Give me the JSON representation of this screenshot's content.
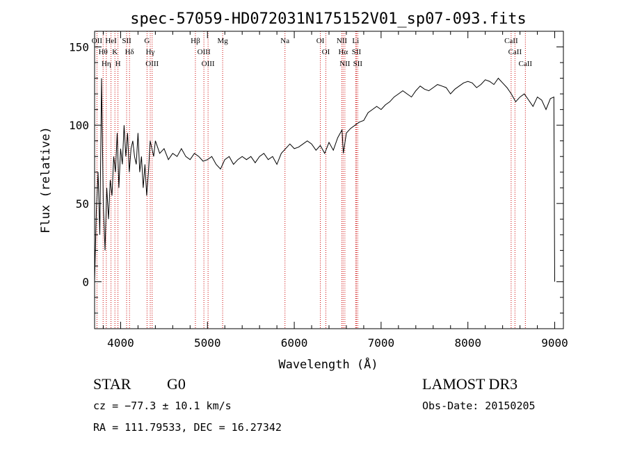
{
  "chart_data": {
    "type": "line",
    "title": "spec-57059-HD072031N175152V01_sp07-093.fits",
    "xlabel": "Wavelength (Å)",
    "ylabel": "Flux (relative)",
    "xlim": [
      3700,
      9100
    ],
    "ylim": [
      -30,
      160
    ],
    "xticks": [
      4000,
      5000,
      6000,
      7000,
      8000,
      9000
    ],
    "xtick_labels": [
      "4000",
      "5000",
      "6000",
      "7000",
      "8000",
      "9000"
    ],
    "yticks": [
      0,
      50,
      100,
      150
    ],
    "ytick_labels": [
      "0",
      "50",
      "100",
      "150"
    ],
    "grid": false,
    "legend": "none",
    "line_color": "#000000",
    "marker_color": "#cc0000",
    "series": [
      {
        "x": [
          3700,
          3720,
          3740,
          3760,
          3780,
          3800,
          3820,
          3840,
          3860,
          3880,
          3900,
          3920,
          3940,
          3960,
          3980,
          4000,
          4020,
          4040,
          4060,
          4080,
          4100,
          4120,
          4140,
          4160,
          4180,
          4200,
          4220,
          4240,
          4260,
          4280,
          4300,
          4320,
          4340,
          4360,
          4380,
          4400,
          4450,
          4500,
          4550,
          4600,
          4650,
          4700,
          4750,
          4800,
          4850,
          4900,
          4950,
          5000,
          5050,
          5100,
          5150,
          5200,
          5250,
          5300,
          5350,
          5400,
          5450,
          5500,
          5550,
          5600,
          5650,
          5700,
          5750,
          5800,
          5850,
          5900,
          5950,
          6000,
          6050,
          6100,
          6150,
          6200,
          6250,
          6300,
          6350,
          6400,
          6450,
          6500,
          6550,
          6565,
          6600,
          6650,
          6700,
          6750,
          6800,
          6850,
          6900,
          6950,
          7000,
          7050,
          7100,
          7150,
          7200,
          7250,
          7300,
          7350,
          7400,
          7450,
          7500,
          7550,
          7600,
          7650,
          7700,
          7750,
          7800,
          7850,
          7900,
          7950,
          8000,
          8050,
          8100,
          8150,
          8200,
          8250,
          8300,
          8350,
          8400,
          8450,
          8500,
          8550,
          8600,
          8650,
          8700,
          8750,
          8800,
          8850,
          8900,
          8950,
          8990,
          9000
        ],
        "y": [
          0,
          45,
          70,
          30,
          130,
          50,
          20,
          60,
          40,
          65,
          55,
          80,
          70,
          95,
          60,
          85,
          75,
          100,
          80,
          95,
          70,
          85,
          90,
          80,
          75,
          95,
          70,
          80,
          60,
          75,
          55,
          70,
          90,
          85,
          80,
          90,
          82,
          85,
          78,
          82,
          80,
          85,
          80,
          78,
          82,
          80,
          77,
          78,
          80,
          75,
          72,
          78,
          80,
          75,
          78,
          80,
          78,
          80,
          76,
          80,
          82,
          78,
          80,
          75,
          82,
          85,
          88,
          85,
          86,
          88,
          90,
          88,
          84,
          87,
          82,
          89,
          84,
          92,
          97,
          82,
          95,
          98,
          100,
          102,
          103,
          108,
          110,
          112,
          110,
          113,
          115,
          118,
          120,
          122,
          120,
          118,
          122,
          125,
          123,
          122,
          124,
          126,
          125,
          124,
          120,
          123,
          125,
          127,
          128,
          127,
          124,
          126,
          129,
          128,
          126,
          130,
          127,
          124,
          120,
          115,
          118,
          120,
          116,
          112,
          118,
          116,
          110,
          117,
          118,
          0
        ]
      }
    ],
    "line_markers": [
      {
        "x": 3727,
        "label": "OII"
      },
      {
        "x": 3798,
        "label": "Hθ"
      },
      {
        "x": 3835,
        "label": "Hη"
      },
      {
        "x": 3889,
        "label": "HeI"
      },
      {
        "x": 3934,
        "label": "K"
      },
      {
        "x": 3969,
        "label": "H"
      },
      {
        "x": 4069,
        "label": "SII"
      },
      {
        "x": 4102,
        "label": "Hδ"
      },
      {
        "x": 4304,
        "label": "G"
      },
      {
        "x": 4341,
        "label": "Hγ"
      },
      {
        "x": 4363,
        "label": "OIII"
      },
      {
        "x": 4861,
        "label": "Hβ"
      },
      {
        "x": 4959,
        "label": "OIII"
      },
      {
        "x": 5007,
        "label": "OIII"
      },
      {
        "x": 5175,
        "label": "Mg"
      },
      {
        "x": 5893,
        "label": "Na"
      },
      {
        "x": 6300,
        "label": "OI"
      },
      {
        "x": 6364,
        "label": "OI"
      },
      {
        "x": 6548,
        "label": "NII"
      },
      {
        "x": 6563,
        "label": "Hα"
      },
      {
        "x": 6583,
        "label": "NII"
      },
      {
        "x": 6707,
        "label": "Li"
      },
      {
        "x": 6716,
        "label": "SII"
      },
      {
        "x": 6731,
        "label": "SII"
      },
      {
        "x": 8498,
        "label": "CaII"
      },
      {
        "x": 8542,
        "label": "CaII"
      },
      {
        "x": 8662,
        "label": "CaII"
      }
    ]
  },
  "info": {
    "class_type": "STAR",
    "subclass": "G0",
    "survey": "LAMOST DR3",
    "cz": "cz = −77.3 ± 10.1 km/s",
    "obs_date": "Obs-Date: 20150205",
    "coords": "RA = 111.79533, DEC =  16.27342"
  }
}
